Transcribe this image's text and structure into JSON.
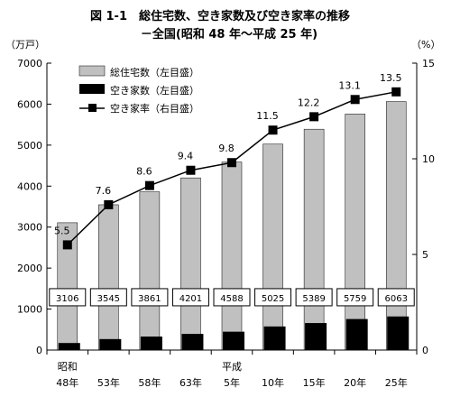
{
  "chart_data": {
    "type": "bar",
    "title": "図 1-1　総住宅数、空き家数及び空き家率の推移",
    "subtitle": "－全国(昭和 48 年～平成 25 年)",
    "y_left_unit": "（万戸）",
    "y_right_unit": "（%）",
    "ylim_left": [
      0,
      7000
    ],
    "ylim_right": [
      0,
      15
    ],
    "y_left_ticks": [
      "0",
      "1000",
      "2000",
      "3000",
      "4000",
      "5000",
      "6000",
      "7000"
    ],
    "y_right_ticks": [
      "0",
      "5",
      "10",
      "15"
    ],
    "categories": [
      "48年",
      "53年",
      "58年",
      "63年",
      "5年",
      "10年",
      "15年",
      "20年",
      "25年"
    ],
    "era_labels": [
      {
        "text": "昭和",
        "category_index": 0
      },
      {
        "text": "平成",
        "category_index": 4
      }
    ],
    "series": [
      {
        "name": "総住宅数（左目盛）",
        "type": "bar",
        "axis": "left",
        "color": "#c0c0c0",
        "values": [
          3106,
          3545,
          3861,
          4201,
          4588,
          5025,
          5389,
          5759,
          6063
        ]
      },
      {
        "name": "空き家数（左目盛）",
        "type": "bar",
        "axis": "left",
        "color": "#000000",
        "values": [
          172,
          268,
          330,
          394,
          448,
          576,
          659,
          757,
          820
        ]
      },
      {
        "name": "空き家率（右目盛）",
        "type": "line",
        "axis": "right",
        "color": "#000000",
        "values": [
          5.5,
          7.6,
          8.6,
          9.4,
          9.8,
          11.5,
          12.2,
          13.1,
          13.5
        ]
      }
    ],
    "bar_value_labels": [
      "3106",
      "3545",
      "3861",
      "4201",
      "4588",
      "5025",
      "5389",
      "5759",
      "6063"
    ],
    "rate_value_labels": [
      "5.5",
      "7.6",
      "8.6",
      "9.4",
      "9.8",
      "11.5",
      "12.2",
      "13.1",
      "13.5"
    ],
    "legend_position": "top-left",
    "grid": false
  }
}
